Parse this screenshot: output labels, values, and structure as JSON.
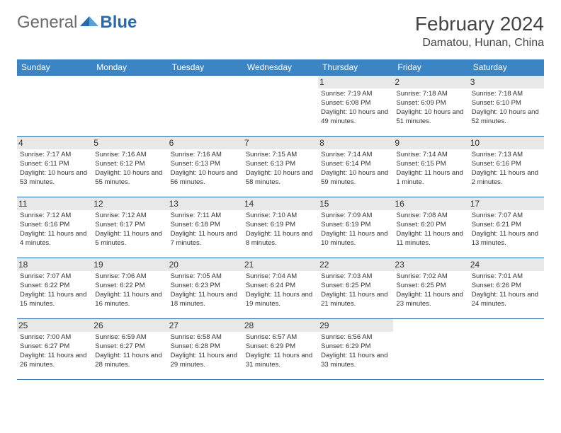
{
  "logo": {
    "word1": "General",
    "word2": "Blue"
  },
  "title": "February 2024",
  "location": "Damatou, Hunan, China",
  "header_bg": "#3b85c4",
  "border_color": "#2b6aa8",
  "shade_bg": "#f0f0f0",
  "daynum_shade_bg": "#e8e8e8",
  "text_color": "#333333",
  "font_family": "Arial",
  "day_headers": [
    "Sunday",
    "Monday",
    "Tuesday",
    "Wednesday",
    "Thursday",
    "Friday",
    "Saturday"
  ],
  "weeks": [
    [
      null,
      null,
      null,
      null,
      {
        "n": "1",
        "sr": "Sunrise: 7:19 AM",
        "ss": "Sunset: 6:08 PM",
        "dl": "Daylight: 10 hours and 49 minutes."
      },
      {
        "n": "2",
        "sr": "Sunrise: 7:18 AM",
        "ss": "Sunset: 6:09 PM",
        "dl": "Daylight: 10 hours and 51 minutes."
      },
      {
        "n": "3",
        "sr": "Sunrise: 7:18 AM",
        "ss": "Sunset: 6:10 PM",
        "dl": "Daylight: 10 hours and 52 minutes."
      }
    ],
    [
      {
        "n": "4",
        "sr": "Sunrise: 7:17 AM",
        "ss": "Sunset: 6:11 PM",
        "dl": "Daylight: 10 hours and 53 minutes."
      },
      {
        "n": "5",
        "sr": "Sunrise: 7:16 AM",
        "ss": "Sunset: 6:12 PM",
        "dl": "Daylight: 10 hours and 55 minutes."
      },
      {
        "n": "6",
        "sr": "Sunrise: 7:16 AM",
        "ss": "Sunset: 6:13 PM",
        "dl": "Daylight: 10 hours and 56 minutes."
      },
      {
        "n": "7",
        "sr": "Sunrise: 7:15 AM",
        "ss": "Sunset: 6:13 PM",
        "dl": "Daylight: 10 hours and 58 minutes."
      },
      {
        "n": "8",
        "sr": "Sunrise: 7:14 AM",
        "ss": "Sunset: 6:14 PM",
        "dl": "Daylight: 10 hours and 59 minutes."
      },
      {
        "n": "9",
        "sr": "Sunrise: 7:14 AM",
        "ss": "Sunset: 6:15 PM",
        "dl": "Daylight: 11 hours and 1 minute."
      },
      {
        "n": "10",
        "sr": "Sunrise: 7:13 AM",
        "ss": "Sunset: 6:16 PM",
        "dl": "Daylight: 11 hours and 2 minutes."
      }
    ],
    [
      {
        "n": "11",
        "sr": "Sunrise: 7:12 AM",
        "ss": "Sunset: 6:16 PM",
        "dl": "Daylight: 11 hours and 4 minutes."
      },
      {
        "n": "12",
        "sr": "Sunrise: 7:12 AM",
        "ss": "Sunset: 6:17 PM",
        "dl": "Daylight: 11 hours and 5 minutes."
      },
      {
        "n": "13",
        "sr": "Sunrise: 7:11 AM",
        "ss": "Sunset: 6:18 PM",
        "dl": "Daylight: 11 hours and 7 minutes."
      },
      {
        "n": "14",
        "sr": "Sunrise: 7:10 AM",
        "ss": "Sunset: 6:19 PM",
        "dl": "Daylight: 11 hours and 8 minutes."
      },
      {
        "n": "15",
        "sr": "Sunrise: 7:09 AM",
        "ss": "Sunset: 6:19 PM",
        "dl": "Daylight: 11 hours and 10 minutes."
      },
      {
        "n": "16",
        "sr": "Sunrise: 7:08 AM",
        "ss": "Sunset: 6:20 PM",
        "dl": "Daylight: 11 hours and 11 minutes."
      },
      {
        "n": "17",
        "sr": "Sunrise: 7:07 AM",
        "ss": "Sunset: 6:21 PM",
        "dl": "Daylight: 11 hours and 13 minutes."
      }
    ],
    [
      {
        "n": "18",
        "sr": "Sunrise: 7:07 AM",
        "ss": "Sunset: 6:22 PM",
        "dl": "Daylight: 11 hours and 15 minutes."
      },
      {
        "n": "19",
        "sr": "Sunrise: 7:06 AM",
        "ss": "Sunset: 6:22 PM",
        "dl": "Daylight: 11 hours and 16 minutes."
      },
      {
        "n": "20",
        "sr": "Sunrise: 7:05 AM",
        "ss": "Sunset: 6:23 PM",
        "dl": "Daylight: 11 hours and 18 minutes."
      },
      {
        "n": "21",
        "sr": "Sunrise: 7:04 AM",
        "ss": "Sunset: 6:24 PM",
        "dl": "Daylight: 11 hours and 19 minutes."
      },
      {
        "n": "22",
        "sr": "Sunrise: 7:03 AM",
        "ss": "Sunset: 6:25 PM",
        "dl": "Daylight: 11 hours and 21 minutes."
      },
      {
        "n": "23",
        "sr": "Sunrise: 7:02 AM",
        "ss": "Sunset: 6:25 PM",
        "dl": "Daylight: 11 hours and 23 minutes."
      },
      {
        "n": "24",
        "sr": "Sunrise: 7:01 AM",
        "ss": "Sunset: 6:26 PM",
        "dl": "Daylight: 11 hours and 24 minutes."
      }
    ],
    [
      {
        "n": "25",
        "sr": "Sunrise: 7:00 AM",
        "ss": "Sunset: 6:27 PM",
        "dl": "Daylight: 11 hours and 26 minutes."
      },
      {
        "n": "26",
        "sr": "Sunrise: 6:59 AM",
        "ss": "Sunset: 6:27 PM",
        "dl": "Daylight: 11 hours and 28 minutes."
      },
      {
        "n": "27",
        "sr": "Sunrise: 6:58 AM",
        "ss": "Sunset: 6:28 PM",
        "dl": "Daylight: 11 hours and 29 minutes."
      },
      {
        "n": "28",
        "sr": "Sunrise: 6:57 AM",
        "ss": "Sunset: 6:29 PM",
        "dl": "Daylight: 11 hours and 31 minutes."
      },
      {
        "n": "29",
        "sr": "Sunrise: 6:56 AM",
        "ss": "Sunset: 6:29 PM",
        "dl": "Daylight: 11 hours and 33 minutes."
      },
      null,
      null
    ]
  ]
}
